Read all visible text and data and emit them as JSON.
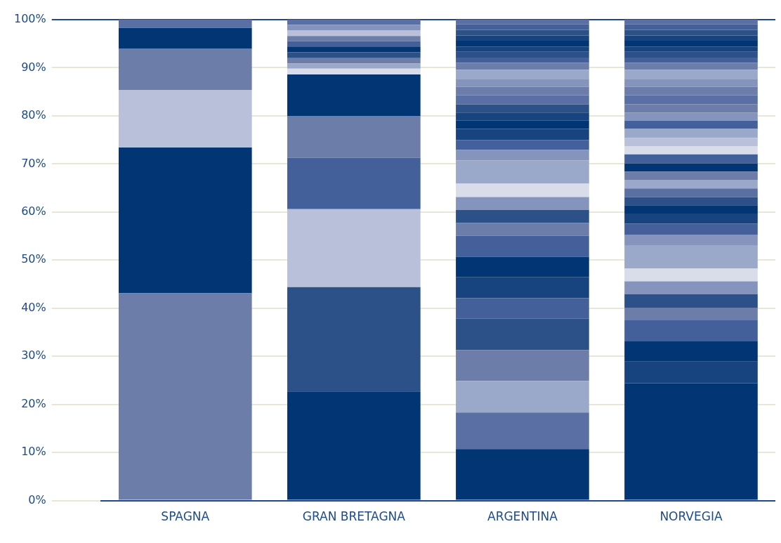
{
  "chart_data": {
    "type": "bar",
    "stacked": true,
    "grid": "y",
    "legend": false,
    "categories": [
      "SPAGNA",
      "GRAN BRETAGNA",
      "ARGENTINA",
      "NORVEGIA"
    ],
    "ylim": [
      0,
      100
    ],
    "yticks": [
      {
        "value": 0,
        "label": "0%"
      },
      {
        "value": 10,
        "label": "10%"
      },
      {
        "value": 20,
        "label": "20%"
      },
      {
        "value": 30,
        "label": "30%"
      },
      {
        "value": 40,
        "label": "40%"
      },
      {
        "value": 50,
        "label": "50%"
      },
      {
        "value": 60,
        "label": "60%"
      },
      {
        "value": 70,
        "label": "70%"
      },
      {
        "value": 80,
        "label": "80%"
      },
      {
        "value": 90,
        "label": "90%"
      },
      {
        "value": 100,
        "label": "100%"
      }
    ],
    "series": [
      {
        "values": [
          43.1,
          22.7,
          10.7,
          24.4
        ],
        "colors": [
          "#6d7daa",
          "#023574",
          "#023574",
          "#023574"
        ]
      },
      {
        "values": [
          30.3,
          21.7,
          7.6,
          4.5
        ],
        "colors": [
          "#023574",
          "#2c5189",
          "#5a6fa3",
          "#17437e"
        ]
      },
      {
        "values": [
          12.0,
          16.2,
          6.6,
          4.2
        ],
        "colors": [
          "#b9c1da",
          "#b9c1da",
          "#9aa8c9",
          "#023574"
        ]
      },
      {
        "values": [
          8.6,
          10.7,
          6.4,
          4.5
        ],
        "colors": [
          "#6d7daa",
          "#43609a",
          "#6d7daa",
          "#43609a"
        ]
      },
      {
        "values": [
          4.3,
          8.7,
          6.5,
          2.5
        ],
        "colors": [
          "#023574",
          "#6d7daa",
          "#2c5189",
          "#6d7daa"
        ]
      },
      {
        "values": [
          1.7,
          8.6,
          4.3,
          2.8
        ],
        "colors": [
          "#5a6fa3",
          "#023574",
          "#43609a",
          "#2c5189"
        ]
      },
      {
        "values": [
          null,
          1.2,
          4.4,
          2.7
        ],
        "colors": [
          null,
          "#d8dde9",
          "#17437e",
          "#8594bd"
        ]
      },
      {
        "values": [
          null,
          1.1,
          4.2,
          2.7
        ],
        "colors": [
          null,
          "#9aa8c9",
          "#023574",
          "#d8dde9"
        ]
      },
      {
        "values": [
          null,
          1.1,
          4.4,
          4.8
        ],
        "colors": [
          null,
          "#6d7daa",
          "#43609a",
          "#9aa8c9"
        ]
      },
      {
        "values": [
          null,
          1.2,
          2.6,
          2.2
        ],
        "colors": [
          null,
          "#2c5189",
          "#6d7daa",
          "#8594bd"
        ]
      },
      {
        "values": [
          null,
          1.2,
          2.7,
          2.3
        ],
        "colors": [
          null,
          "#023574",
          "#2c5189",
          "#43609a"
        ]
      },
      {
        "values": [
          null,
          1.1,
          2.7,
          2.1
        ],
        "colors": [
          null,
          "#43609a",
          "#8594bd",
          "#17437e"
        ]
      },
      {
        "values": [
          null,
          1.1,
          2.8,
          1.7
        ],
        "colors": [
          null,
          "#6d7daa",
          "#d8dde9",
          "#023574"
        ]
      },
      {
        "values": [
          null,
          1.2,
          4.8,
          1.7
        ],
        "colors": [
          null,
          "#b9c1da",
          "#9aa8c9",
          "#2c5189"
        ]
      },
      {
        "values": [
          null,
          1.1,
          2.2,
          1.8
        ],
        "colors": [
          null,
          "#8594bd",
          "#8594bd",
          "#5a6fa3"
        ]
      },
      {
        "values": [
          null,
          1.1,
          2.1,
          1.8
        ],
        "colors": [
          null,
          "#5a6fa3",
          "#43609a",
          "#9aa8c9"
        ]
      },
      {
        "values": [
          null,
          null,
          2.3,
          1.7
        ],
        "colors": [
          null,
          null,
          "#17437e",
          "#6d7daa"
        ]
      },
      {
        "values": [
          null,
          null,
          1.7,
          1.7
        ],
        "colors": [
          null,
          null,
          "#023574",
          "#023574"
        ]
      },
      {
        "values": [
          null,
          null,
          1.7,
          1.9
        ],
        "colors": [
          null,
          null,
          "#17437e",
          "#43609a"
        ]
      },
      {
        "values": [
          null,
          null,
          1.7,
          1.7
        ],
        "colors": [
          null,
          null,
          "#2c5189",
          "#d8dde9"
        ]
      },
      {
        "values": [
          null,
          null,
          1.9,
          1.7
        ],
        "colors": [
          null,
          null,
          "#5a6fa3",
          "#b9c1da"
        ]
      },
      {
        "values": [
          null,
          null,
          1.7,
          1.9
        ],
        "colors": [
          null,
          null,
          "#6d7daa",
          "#9aa8c9"
        ]
      },
      {
        "values": [
          null,
          null,
          1.7,
          1.7
        ],
        "colors": [
          null,
          null,
          "#8594bd",
          "#43609a"
        ]
      },
      {
        "values": [
          null,
          null,
          1.9,
          1.7
        ],
        "colors": [
          null,
          null,
          "#9aa8c9",
          "#8594bd"
        ]
      },
      {
        "values": [
          null,
          null,
          1.4,
          1.7
        ],
        "colors": [
          null,
          null,
          "#6d7daa",
          "#6d7daa"
        ]
      },
      {
        "values": [
          null,
          null,
          1.1,
          1.9
        ],
        "colors": [
          null,
          null,
          "#43609a",
          "#5a6fa3"
        ]
      },
      {
        "values": [
          null,
          null,
          1.2,
          1.7
        ],
        "colors": [
          null,
          null,
          "#2c5189",
          "#6d7daa"
        ]
      },
      {
        "values": [
          null,
          null,
          1.1,
          1.7
        ],
        "colors": [
          null,
          null,
          "#17437e",
          "#8594bd"
        ]
      },
      {
        "values": [
          null,
          null,
          1.2,
          1.9
        ],
        "colors": [
          null,
          null,
          "#023574",
          "#9aa8c9"
        ]
      },
      {
        "values": [
          null,
          null,
          1.1,
          1.4
        ],
        "colors": [
          null,
          null,
          "#17437e",
          "#6d7daa"
        ]
      },
      {
        "values": [
          null,
          null,
          1.2,
          1.1
        ],
        "colors": [
          null,
          null,
          "#2c5189",
          "#43609a"
        ]
      },
      {
        "values": [
          null,
          null,
          1.1,
          1.2
        ],
        "colors": [
          null,
          null,
          "#43609a",
          "#2c5189"
        ]
      },
      {
        "values": [
          null,
          null,
          1.0,
          1.1
        ],
        "colors": [
          null,
          null,
          "#5a6fa3",
          "#17437e"
        ]
      },
      {
        "values": [
          null,
          null,
          null,
          1.2
        ],
        "colors": [
          null,
          null,
          null,
          "#023574"
        ]
      },
      {
        "values": [
          null,
          null,
          null,
          1.1
        ],
        "colors": [
          null,
          null,
          null,
          "#17437e"
        ]
      },
      {
        "values": [
          null,
          null,
          null,
          1.2
        ],
        "colors": [
          null,
          null,
          null,
          "#2c5189"
        ]
      },
      {
        "values": [
          null,
          null,
          null,
          1.1
        ],
        "colors": [
          null,
          null,
          null,
          "#43609a"
        ]
      },
      {
        "values": [
          null,
          null,
          null,
          1.0
        ],
        "colors": [
          null,
          null,
          null,
          "#5a6fa3"
        ]
      }
    ]
  }
}
